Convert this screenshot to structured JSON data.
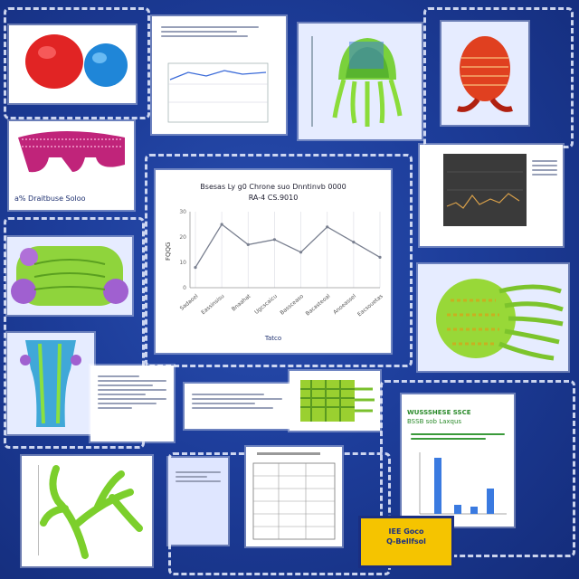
{
  "captions": {
    "bio_caption": "a% Draitbuse Soloo"
  },
  "central_chart": {
    "title": "Bsesas Ly g0 Chrone suo Dnntinvb 0000",
    "subtitle": "RA-4 CS.9010",
    "ylabel": "FQQG",
    "xlabel": "Tatco",
    "x_ticks": [
      "Sadaoel",
      "Eassinsisu",
      "Bnaahat",
      "Ugcscaicu",
      "Bassceaso",
      "Bacasteoal",
      "Anoeassel",
      "Eacsouetas"
    ]
  },
  "bar_card": {
    "title": "WUSSSHESE SSCE",
    "subtitle": "BSSB sob Laxqus"
  },
  "badge": {
    "line1": "IEE Goco",
    "line2": "Q-Bellfsol"
  },
  "chart_data": {
    "type": "line",
    "title": "Bsesas Ly g0 Chrone suo Dnntinvb 0000",
    "categories": [
      "Sadaoel",
      "Eassinsisu",
      "Bnaahat",
      "Ugcscaicu",
      "Bassceaso",
      "Bacasteoal",
      "Anoeassel",
      "Eacsouetas"
    ],
    "values": [
      8,
      25,
      17,
      19,
      14,
      24,
      18,
      12
    ],
    "ylim": [
      0,
      30
    ],
    "xlabel": "Tatco",
    "ylabel": "FQQG"
  },
  "colors": {
    "background": "#1d3d9a",
    "dash": "#ebf0ff",
    "accent_green": "#7ad13c",
    "accent_red": "#e33030",
    "badge": "#f5c400"
  }
}
